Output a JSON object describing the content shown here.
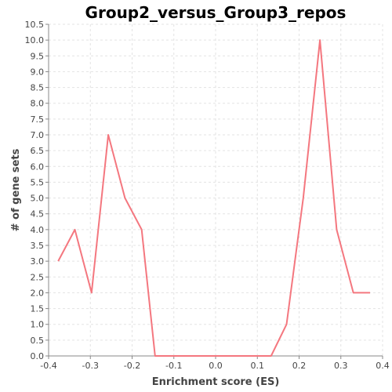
{
  "chart_data": {
    "type": "line",
    "title": "Group2_versus_Group3_repos",
    "xlabel": "Enrichment score (ES)",
    "ylabel": "# of gene sets",
    "xlim": [
      -0.4,
      0.4
    ],
    "ylim": [
      0.0,
      10.5
    ],
    "x_ticks": [
      -0.4,
      -0.3,
      -0.2,
      -0.1,
      0.0,
      0.1,
      0.2,
      0.3,
      0.4
    ],
    "x_tick_labels": [
      "-0.4",
      "-0.3",
      "-0.2",
      "-0.1",
      "0.0",
      "0.1",
      "0.2",
      "0.3",
      "0.4"
    ],
    "y_ticks": [
      0.0,
      0.5,
      1.0,
      1.5,
      2.0,
      2.5,
      3.0,
      3.5,
      4.0,
      4.5,
      5.0,
      5.5,
      6.0,
      6.5,
      7.0,
      7.5,
      8.0,
      8.5,
      9.0,
      9.5,
      10.0,
      10.5
    ],
    "y_tick_labels": [
      "0.0",
      "0.5",
      "1.0",
      "1.5",
      "2.0",
      "2.5",
      "3.0",
      "3.5",
      "4.0",
      "4.5",
      "5.0",
      "5.5",
      "6.0",
      "6.5",
      "7.0",
      "7.5",
      "8.0",
      "8.5",
      "9.0",
      "9.5",
      "10.0",
      "10.5"
    ],
    "grid": true,
    "series": [
      {
        "color": "#f4777f",
        "x": [
          -0.377,
          -0.337,
          -0.297,
          -0.257,
          -0.217,
          -0.177,
          -0.145,
          -0.1,
          -0.05,
          0.0,
          0.05,
          0.1,
          0.133,
          0.17,
          0.21,
          0.25,
          0.29,
          0.33,
          0.37
        ],
        "y": [
          3.0,
          4.0,
          2.0,
          7.0,
          5.0,
          4.0,
          0.0,
          0.0,
          0.0,
          0.0,
          0.0,
          0.0,
          0.0,
          1.0,
          5.0,
          10.0,
          4.0,
          2.0,
          2.0
        ]
      }
    ]
  }
}
